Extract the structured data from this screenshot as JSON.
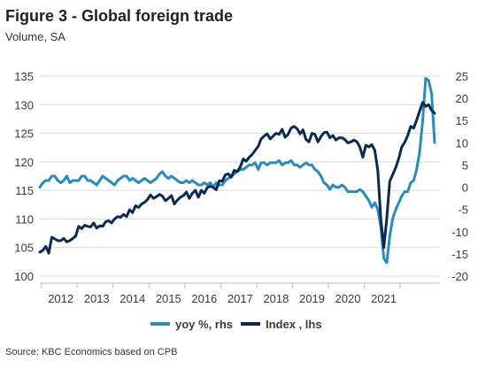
{
  "header": {
    "title": "Figure 3 - Global foreign trade",
    "subtitle": "Volume, SA"
  },
  "footer": {
    "source": "Source: KBC Economics based on CPB"
  },
  "colors": {
    "yoy": "#2a8cbe",
    "index": "#0b2a52",
    "grid": "#d9d9d9",
    "axis": "#bfbfbf"
  },
  "chart_data": {
    "type": "line",
    "x_labels": [
      "2012",
      "2013",
      "2014",
      "2015",
      "2016",
      "2017",
      "2018",
      "2019",
      "2020",
      "2021"
    ],
    "x_start": "2011-12",
    "frequency": "monthly",
    "y_left": {
      "ticks": [
        "100",
        "105",
        "110",
        "115",
        "120",
        "125",
        "130",
        "135"
      ],
      "lim": [
        100,
        135
      ]
    },
    "y_right": {
      "ticks": [
        "-20",
        "-15",
        "-10",
        "-5",
        "0",
        "5",
        "10",
        "15",
        "20",
        "25"
      ],
      "lim": [
        -20,
        25
      ]
    },
    "grid": "horizontal",
    "legend_position": "bottom",
    "series": [
      {
        "name": "yoy %, rhs",
        "axis": "right",
        "values": [
          0.0,
          1.0,
          1.5,
          1.5,
          2.5,
          2.5,
          1.5,
          1.0,
          1.5,
          2.5,
          1.0,
          1.5,
          1.5,
          1.5,
          2.5,
          2.5,
          1.5,
          1.5,
          1.0,
          0.5,
          1.5,
          2.5,
          2.0,
          1.5,
          1.0,
          0.5,
          1.5,
          2.0,
          2.5,
          2.5,
          1.5,
          2.0,
          1.5,
          1.0,
          1.5,
          2.0,
          1.5,
          1.0,
          1.5,
          2.0,
          3.0,
          3.5,
          2.5,
          2.0,
          2.5,
          2.0,
          1.5,
          1.0,
          1.0,
          1.5,
          1.0,
          1.5,
          1.0,
          0.5,
          0.5,
          1.0,
          0.5,
          1.0,
          0.0,
          1.0,
          0.5,
          0.5,
          1.5,
          2.0,
          2.5,
          3.0,
          3.5,
          4.0,
          4.0,
          4.5,
          5.0,
          5.0,
          5.5,
          4.0,
          5.5,
          5.5,
          5.0,
          5.5,
          5.5,
          5.5,
          6.0,
          5.0,
          5.5,
          5.5,
          6.0,
          5.0,
          5.0,
          4.5,
          5.0,
          5.5,
          5.0,
          5.0,
          4.0,
          3.5,
          2.5,
          1.0,
          0.5,
          -0.5,
          0.5,
          0.0,
          0.0,
          0.5,
          0.0,
          -1.0,
          -1.0,
          -1.0,
          -1.0,
          -0.5,
          -1.0,
          -2.0,
          -3.0,
          -4.5,
          -3.5,
          -5.0,
          -9.0,
          -16.0,
          -17.0,
          -11.0,
          -7.0,
          -5.0,
          -3.5,
          -2.0,
          -1.0,
          -1.0,
          1.0,
          1.5,
          4.0,
          8.0,
          15.0,
          24.5,
          24.0,
          21.0,
          10.0
        ]
      },
      {
        "name": "Index , lhs",
        "axis": "left",
        "values": [
          104.2,
          104.5,
          105.2,
          104.0,
          106.8,
          106.5,
          106.2,
          106.2,
          106.6,
          106.0,
          106.2,
          106.6,
          107.0,
          108.7,
          108.3,
          108.9,
          108.7,
          108.6,
          109.3,
          108.4,
          108.8,
          108.7,
          109.5,
          109.7,
          109.3,
          110.0,
          110.4,
          110.3,
          110.8,
          110.4,
          111.6,
          111.1,
          112.3,
          112.0,
          112.6,
          112.9,
          113.4,
          114.2,
          113.6,
          113.9,
          114.3,
          114.0,
          113.2,
          113.6,
          114.1,
          112.6,
          113.3,
          113.8,
          114.1,
          114.7,
          113.6,
          114.5,
          115.0,
          113.8,
          115.0,
          114.5,
          115.5,
          115.7,
          115.5,
          115.1,
          116.7,
          116.6,
          117.7,
          117.9,
          117.3,
          118.5,
          118.3,
          119.1,
          120.5,
          120.1,
          120.8,
          121.3,
          122.0,
          122.7,
          124.0,
          124.5,
          124.9,
          124.0,
          124.5,
          125.0,
          124.8,
          125.7,
          124.3,
          124.8,
          125.9,
          126.2,
          125.8,
          124.9,
          125.6,
          123.9,
          123.5,
          125.0,
          124.8,
          123.5,
          124.4,
          125.1,
          125.2,
          124.2,
          124.6,
          123.8,
          124.2,
          124.2,
          123.9,
          123.3,
          123.5,
          123.8,
          123.5,
          122.6,
          120.8,
          122.9,
          122.6,
          123.0,
          122.0,
          118.5,
          110.0,
          105.0,
          110.0,
          116.6,
          117.8,
          119.0,
          120.6,
          122.6,
          123.4,
          124.6,
          126.2,
          125.9,
          127.3,
          128.9,
          130.4,
          129.7,
          130.0,
          129.0,
          128.5
        ]
      }
    ]
  },
  "icons": {
    "legend_marker": "line-segment"
  }
}
